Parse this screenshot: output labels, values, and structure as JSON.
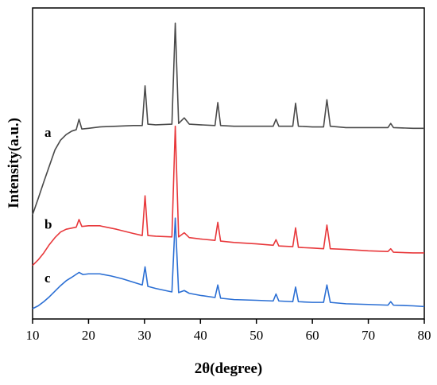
{
  "chart_data": {
    "type": "line",
    "title": "",
    "xlabel": "2θ(degree)",
    "ylabel": "Intensity(a.u.)",
    "xlim": [
      10,
      80
    ],
    "xticks": [
      10,
      20,
      30,
      40,
      50,
      60,
      70,
      80
    ],
    "yticks": "none",
    "grid": false,
    "legend": "none",
    "peaks_2theta": [
      18.3,
      30.1,
      35.5,
      37.1,
      43.1,
      53.5,
      57.0,
      62.6,
      74.0
    ],
    "series": [
      {
        "name": "a",
        "color": "#4a4a4a",
        "x": [
          10,
          11,
          12,
          13,
          14,
          15,
          16,
          17,
          17.8,
          18.3,
          18.8,
          20,
          22,
          25,
          28,
          29.6,
          30.1,
          30.6,
          32,
          34.9,
          35.5,
          36.1,
          37.1,
          38,
          40,
          42.6,
          43.1,
          43.6,
          46,
          50,
          53.0,
          53.5,
          54.0,
          56.5,
          57.0,
          57.5,
          60,
          62.0,
          62.6,
          63.2,
          66,
          70,
          73.5,
          74.0,
          74.5,
          78,
          80
        ],
        "y": [
          1.35,
          1.58,
          1.82,
          2.05,
          2.28,
          2.42,
          2.5,
          2.55,
          2.57,
          2.72,
          2.58,
          2.59,
          2.61,
          2.62,
          2.63,
          2.63,
          3.2,
          2.65,
          2.64,
          2.65,
          4.1,
          2.66,
          2.74,
          2.65,
          2.64,
          2.63,
          2.96,
          2.63,
          2.62,
          2.62,
          2.62,
          2.72,
          2.62,
          2.62,
          2.95,
          2.62,
          2.61,
          2.61,
          3.0,
          2.62,
          2.6,
          2.6,
          2.6,
          2.66,
          2.6,
          2.59,
          2.59
        ]
      },
      {
        "name": "b",
        "color": "#e8383b",
        "x": [
          10,
          11,
          12,
          13,
          14,
          15,
          16,
          17.8,
          18.3,
          18.8,
          20,
          22,
          25,
          28,
          29.6,
          30.1,
          30.6,
          32,
          34.9,
          35.5,
          36.1,
          37.1,
          38,
          40,
          42.6,
          43.1,
          43.6,
          46,
          50,
          53.0,
          53.5,
          54.0,
          56.5,
          57.0,
          57.5,
          60,
          62.0,
          62.6,
          63.2,
          66,
          70,
          73.5,
          74.0,
          74.5,
          78,
          80
        ],
        "y": [
          0.62,
          0.7,
          0.8,
          0.92,
          1.02,
          1.1,
          1.14,
          1.17,
          1.28,
          1.18,
          1.19,
          1.19,
          1.14,
          1.08,
          1.05,
          1.62,
          1.05,
          1.04,
          1.03,
          2.62,
          1.03,
          1.09,
          1.02,
          1.0,
          0.98,
          1.24,
          0.97,
          0.95,
          0.93,
          0.91,
          0.99,
          0.9,
          0.89,
          1.16,
          0.88,
          0.87,
          0.86,
          1.2,
          0.86,
          0.85,
          0.83,
          0.82,
          0.86,
          0.81,
          0.8,
          0.8
        ]
      },
      {
        "name": "c",
        "color": "#2b6fd4",
        "x": [
          10,
          11,
          12,
          13,
          14,
          15,
          16,
          17,
          18.3,
          19,
          20,
          21,
          22,
          24,
          26,
          28,
          29.6,
          30.1,
          30.6,
          32,
          34.9,
          35.5,
          36.1,
          37.1,
          38,
          40,
          42.6,
          43.1,
          43.6,
          46,
          50,
          53.0,
          53.5,
          54.0,
          56.5,
          57.0,
          57.5,
          60,
          62.0,
          62.6,
          63.2,
          66,
          70,
          73.5,
          74.0,
          74.5,
          78,
          80
        ],
        "y": [
          0.0,
          0.04,
          0.1,
          0.17,
          0.25,
          0.33,
          0.4,
          0.45,
          0.52,
          0.49,
          0.5,
          0.5,
          0.5,
          0.47,
          0.43,
          0.38,
          0.34,
          0.6,
          0.32,
          0.29,
          0.24,
          1.3,
          0.23,
          0.26,
          0.22,
          0.19,
          0.16,
          0.34,
          0.15,
          0.13,
          0.12,
          0.11,
          0.21,
          0.11,
          0.1,
          0.31,
          0.1,
          0.09,
          0.09,
          0.34,
          0.09,
          0.07,
          0.06,
          0.05,
          0.1,
          0.05,
          0.04,
          0.03
        ]
      }
    ]
  }
}
